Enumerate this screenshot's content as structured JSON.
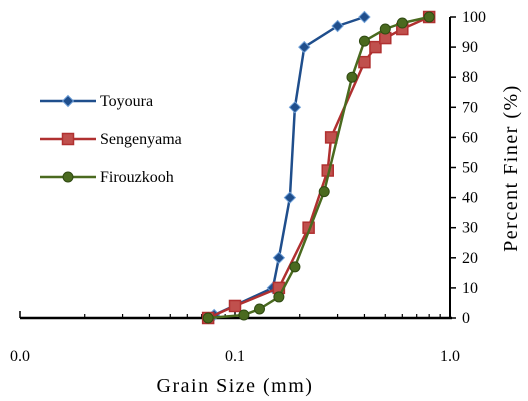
{
  "chart_data": {
    "type": "line",
    "xlabel": "Grain Size (mm)",
    "ylabel": "Percent Finer (%)",
    "x_scale": "log",
    "xlim": [
      0.01,
      1.0
    ],
    "ylim": [
      0,
      100
    ],
    "x_ticks": [
      0.01,
      0.1,
      1.0
    ],
    "x_tick_labels": [
      "0.0",
      "0.1",
      "1.0"
    ],
    "y_ticks": [
      0,
      10,
      20,
      30,
      40,
      50,
      60,
      70,
      80,
      90,
      100
    ],
    "y_tick_labels": [
      "0",
      "10",
      "20",
      "30",
      "40",
      "50",
      "60",
      "70",
      "80",
      "90",
      "100"
    ],
    "grid": false,
    "legend_position": "left",
    "series": [
      {
        "name": "Toyoura",
        "color": "#1f4e8c",
        "marker": "diamond",
        "x": [
          0.075,
          0.08,
          0.15,
          0.16,
          0.18,
          0.19,
          0.21,
          0.3,
          0.4
        ],
        "y": [
          0,
          1,
          10,
          20,
          40,
          70,
          90,
          97,
          100
        ]
      },
      {
        "name": "Sengenyama",
        "color": "#b03030",
        "marker": "square",
        "x": [
          0.075,
          0.1,
          0.16,
          0.22,
          0.27,
          0.28,
          0.4,
          0.45,
          0.5,
          0.6,
          0.8
        ],
        "y": [
          0,
          4,
          10,
          30,
          49,
          60,
          85,
          90,
          93,
          96,
          100
        ]
      },
      {
        "name": "Firouzkooh",
        "color": "#4a6a1f",
        "marker": "circle",
        "x": [
          0.075,
          0.11,
          0.13,
          0.16,
          0.19,
          0.26,
          0.35,
          0.4,
          0.5,
          0.6,
          0.8
        ],
        "y": [
          0,
          1,
          3,
          7,
          17,
          42,
          80,
          92,
          96,
          98,
          100
        ]
      }
    ]
  }
}
